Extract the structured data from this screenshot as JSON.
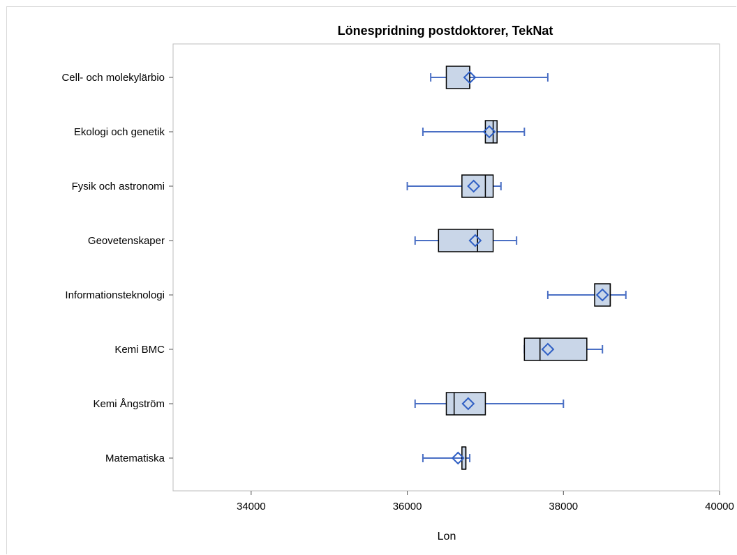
{
  "chart_data": {
    "type": "box",
    "title": "Lönespridning postdoktorer, TekNat",
    "xlabel": "Lon",
    "ylabel": "",
    "xlim": [
      33000,
      40000
    ],
    "xticks": [
      34000,
      36000,
      38000,
      40000
    ],
    "grid": false,
    "colors": {
      "fill": "#c9d6e8",
      "whisker": "#4a6fc4",
      "mean": "#2f5fc4",
      "edge": "#000000"
    },
    "categories": [
      "Cell- och molekylärbio",
      "Ekologi och genetik",
      "Fysik och astronomi",
      "Geovetenskaper",
      "Informationsteknologi",
      "Kemi BMC",
      "Kemi Ångström",
      "Matematiska"
    ],
    "boxes": [
      {
        "min": 36300,
        "q1": 36500,
        "median": 36800,
        "q3": 36800,
        "max": 37800,
        "mean": 36800
      },
      {
        "min": 36200,
        "q1": 37000,
        "median": 37100,
        "q3": 37150,
        "max": 37500,
        "mean": 37050
      },
      {
        "min": 36000,
        "q1": 36700,
        "median": 37000,
        "q3": 37100,
        "max": 37200,
        "mean": 36850
      },
      {
        "min": 36100,
        "q1": 36400,
        "median": 36900,
        "q3": 37100,
        "max": 37400,
        "mean": 36870
      },
      {
        "min": 37800,
        "q1": 38400,
        "median": 38600,
        "q3": 38600,
        "max": 38800,
        "mean": 38500
      },
      {
        "min": 37500,
        "q1": 37500,
        "median": 37700,
        "q3": 38300,
        "max": 38500,
        "mean": 37800
      },
      {
        "min": 36100,
        "q1": 36500,
        "median": 36600,
        "q3": 37000,
        "max": 38000,
        "mean": 36780
      },
      {
        "min": 36200,
        "q1": 36700,
        "median": 36750,
        "q3": 36750,
        "max": 36800,
        "mean": 36650
      }
    ]
  }
}
